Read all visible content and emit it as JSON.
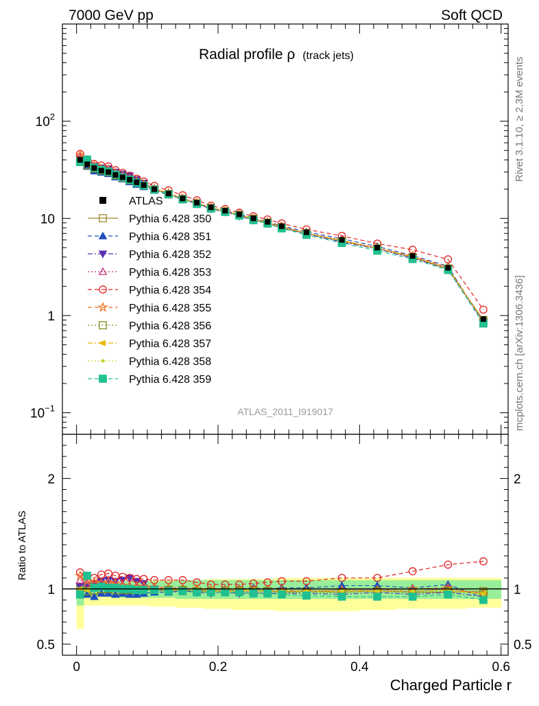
{
  "header": {
    "left": "7000 GeV pp",
    "right": "Soft QCD"
  },
  "side_labels": {
    "rivet": "Rivet 3.1.10, ≥ 2.3M events",
    "mcplots": "mcplots.cern.ch [arXiv:1306.3436]"
  },
  "main_plot": {
    "title_main": "Radial profile ρ",
    "title_sub": "(track jets)",
    "analysis_id": "ATLAS_2011_I919017",
    "y_ticks": [
      {
        "label_base": "10",
        "label_exp": "−1",
        "value": 0.1
      },
      {
        "label_base": "1",
        "label_exp": "",
        "value": 1
      },
      {
        "label_base": "10",
        "label_exp": "",
        "value": 10
      },
      {
        "label_base": "10",
        "label_exp": "2",
        "value": 100
      }
    ]
  },
  "ratio_plot": {
    "ylabel": "Ratio to ATLAS",
    "y_ticks": [
      {
        "label": "0.5",
        "value": 0.5
      },
      {
        "label": "1",
        "value": 1
      },
      {
        "label": "2",
        "value": 2
      }
    ]
  },
  "x_axis": {
    "label": "Charged Particle r",
    "ticks": [
      {
        "label": "0",
        "value": 0
      },
      {
        "label": "0.2",
        "value": 0.2
      },
      {
        "label": "0.4",
        "value": 0.4
      },
      {
        "label": "0.6",
        "value": 0.6
      }
    ]
  },
  "chart_data": {
    "type": "scatter",
    "xlabel": "Charged Particle r",
    "ylabel": "",
    "ratio_ylabel": "Ratio to ATLAS",
    "xlim": [
      -0.02,
      0.61
    ],
    "ylim": [
      0.06,
      1000
    ],
    "y_scale": "log",
    "ratio_ylim": [
      0.4,
      2.4
    ],
    "legend_placement": "left, middle",
    "x": [
      0.005,
      0.015,
      0.025,
      0.035,
      0.045,
      0.055,
      0.065,
      0.075,
      0.085,
      0.095,
      0.11,
      0.13,
      0.15,
      0.17,
      0.19,
      0.21,
      0.23,
      0.25,
      0.27,
      0.29,
      0.325,
      0.375,
      0.425,
      0.475,
      0.525,
      0.575
    ],
    "atlas": {
      "name": "ATLAS",
      "values": [
        40,
        36,
        33,
        31,
        30,
        28,
        26.5,
        25,
        23.5,
        22,
        20,
        18,
        16,
        14.5,
        13,
        12,
        11,
        10,
        9.2,
        8.3,
        7.2,
        6,
        5,
        4.1,
        3.1,
        0.92
      ],
      "ratio_band_stat": [
        [
          0.85,
          1.04
        ],
        [
          0.93,
          1.06
        ],
        [
          0.93,
          1.06
        ],
        [
          0.93,
          1.06
        ],
        [
          0.93,
          1.06
        ],
        [
          0.92,
          1.07
        ],
        [
          0.92,
          1.07
        ],
        [
          0.92,
          1.07
        ],
        [
          0.92,
          1.07
        ],
        [
          0.92,
          1.07
        ],
        [
          0.92,
          1.07
        ],
        [
          0.92,
          1.07
        ],
        [
          0.91,
          1.08
        ],
        [
          0.91,
          1.08
        ],
        [
          0.91,
          1.08
        ],
        [
          0.91,
          1.08
        ],
        [
          0.91,
          1.08
        ],
        [
          0.91,
          1.08
        ],
        [
          0.91,
          1.08
        ],
        [
          0.91,
          1.08
        ],
        [
          0.91,
          1.08
        ],
        [
          0.91,
          1.08
        ],
        [
          0.91,
          1.08
        ],
        [
          0.91,
          1.08
        ],
        [
          0.91,
          1.08
        ],
        [
          0.91,
          1.08
        ]
      ],
      "ratio_band_total": [
        [
          0.64,
          1.06
        ],
        [
          0.85,
          1.07
        ],
        [
          0.85,
          1.07
        ],
        [
          0.85,
          1.07
        ],
        [
          0.85,
          1.07
        ],
        [
          0.85,
          1.07
        ],
        [
          0.85,
          1.07
        ],
        [
          0.85,
          1.07
        ],
        [
          0.85,
          1.07
        ],
        [
          0.85,
          1.07
        ],
        [
          0.84,
          1.08
        ],
        [
          0.84,
          1.08
        ],
        [
          0.83,
          1.08
        ],
        [
          0.83,
          1.08
        ],
        [
          0.82,
          1.09
        ],
        [
          0.82,
          1.09
        ],
        [
          0.81,
          1.09
        ],
        [
          0.81,
          1.09
        ],
        [
          0.81,
          1.09
        ],
        [
          0.8,
          1.1
        ],
        [
          0.8,
          1.1
        ],
        [
          0.8,
          1.1
        ],
        [
          0.81,
          1.1
        ],
        [
          0.82,
          1.1
        ],
        [
          0.82,
          1.1
        ],
        [
          0.83,
          1.1
        ]
      ]
    },
    "series": [
      {
        "name": "Pythia 6.428 350",
        "color": "#a08a2a",
        "marker": "square-open",
        "dash": "solid",
        "ratio": [
          1.0,
          0.97,
          0.98,
          0.99,
          1.0,
          0.99,
          0.98,
          0.99,
          0.99,
          0.99,
          0.99,
          0.98,
          0.99,
          0.98,
          0.98,
          0.98,
          0.99,
          0.99,
          0.98,
          0.97,
          0.98,
          0.97,
          0.98,
          0.97,
          0.97,
          0.98
        ]
      },
      {
        "name": "Pythia 6.428 351",
        "color": "#1f4fbf",
        "marker": "triangle-up",
        "dash": "dashed",
        "ratio": [
          0.99,
          0.95,
          0.93,
          0.96,
          0.96,
          0.95,
          0.96,
          0.95,
          0.95,
          0.96,
          0.97,
          0.97,
          0.98,
          0.98,
          0.99,
          1.0,
          1.0,
          1.01,
          1.0,
          1.01,
          1.01,
          1.03,
          1.03,
          1.01,
          1.04,
          0.92
        ]
      },
      {
        "name": "Pythia 6.428 352",
        "color": "#5a2fb5",
        "marker": "triangle-down",
        "dash": "dashdot",
        "ratio": [
          1.02,
          1.03,
          1.05,
          1.07,
          1.08,
          1.07,
          1.08,
          1.1,
          1.07,
          1.05,
          1.0,
          0.99,
          0.98,
          0.97,
          0.96,
          0.97,
          0.96,
          0.96,
          0.96,
          0.96,
          0.96,
          0.95,
          0.97,
          0.95,
          0.97,
          0.93
        ]
      },
      {
        "name": "Pythia 6.428 353",
        "color": "#c0307a",
        "marker": "triangle-up-open",
        "dash": "dotted",
        "ratio": [
          1.08,
          1.05,
          1.06,
          1.05,
          1.06,
          1.05,
          1.04,
          1.03,
          1.03,
          1.02,
          1.02,
          1.01,
          1.01,
          1.0,
          0.99,
          0.99,
          0.98,
          0.97,
          0.97,
          0.98,
          0.98,
          0.99,
          0.99,
          0.98,
          1.0,
          0.96
        ]
      },
      {
        "name": "Pythia 6.428 354",
        "color": "#e02020",
        "marker": "circle-open",
        "dash": "dashed",
        "ratio": [
          1.15,
          1.12,
          1.1,
          1.13,
          1.14,
          1.12,
          1.11,
          1.1,
          1.09,
          1.09,
          1.08,
          1.08,
          1.08,
          1.06,
          1.04,
          1.04,
          1.04,
          1.05,
          1.06,
          1.07,
          1.07,
          1.1,
          1.1,
          1.16,
          1.22,
          1.25
        ]
      },
      {
        "name": "Pythia 6.428 355",
        "color": "#f07020",
        "marker": "star-open",
        "dash": "dashed",
        "ratio": [
          1.12,
          1.07,
          1.06,
          1.05,
          1.06,
          1.05,
          1.03,
          1.02,
          1.02,
          1.02,
          1.01,
          1.01,
          1.0,
          1.0,
          0.99,
          0.99,
          0.99,
          0.99,
          0.99,
          0.99,
          0.98,
          0.99,
          0.99,
          1.0,
          1.01,
          0.95
        ]
      },
      {
        "name": "Pythia 6.428 356",
        "color": "#7a8f1a",
        "marker": "square-open",
        "dash": "dotted",
        "ratio": [
          0.97,
          0.98,
          0.99,
          1.0,
          1.0,
          0.99,
          0.99,
          0.99,
          0.99,
          0.99,
          0.99,
          0.99,
          0.99,
          0.98,
          0.98,
          0.98,
          0.98,
          0.98,
          0.98,
          0.97,
          0.97,
          0.97,
          0.98,
          0.97,
          0.98,
          0.96
        ]
      },
      {
        "name": "Pythia 6.428 357",
        "color": "#e6b800",
        "marker": "triangle-left",
        "dash": "dashdot",
        "ratio": [
          1.0,
          0.99,
          1.0,
          1.01,
          1.02,
          1.01,
          1.01,
          1.0,
          1.0,
          1.0,
          1.0,
          0.99,
          0.99,
          0.99,
          0.99,
          0.99,
          0.99,
          0.99,
          0.98,
          0.98,
          0.98,
          0.98,
          0.98,
          0.98,
          0.99,
          0.96
        ]
      },
      {
        "name": "Pythia 6.428 358",
        "color": "#c8d22a",
        "marker": "dot",
        "dash": "dotted",
        "ratio": [
          0.99,
          0.99,
          1.0,
          1.0,
          1.01,
          1.0,
          1.0,
          1.0,
          1.0,
          1.0,
          0.99,
          0.99,
          0.99,
          0.99,
          0.98,
          0.98,
          0.98,
          0.98,
          0.98,
          0.98,
          0.98,
          0.98,
          0.98,
          0.98,
          0.98,
          0.95
        ]
      },
      {
        "name": "Pythia 6.428 359",
        "color": "#20c090",
        "marker": "square",
        "dash": "dashed",
        "ratio": [
          0.95,
          1.12,
          1.01,
          1.02,
          1.01,
          1.01,
          1.0,
          1.0,
          0.99,
          0.99,
          0.99,
          0.98,
          0.98,
          0.97,
          0.97,
          0.97,
          0.97,
          0.96,
          0.96,
          0.95,
          0.94,
          0.93,
          0.93,
          0.93,
          0.95,
          0.9
        ]
      }
    ]
  }
}
